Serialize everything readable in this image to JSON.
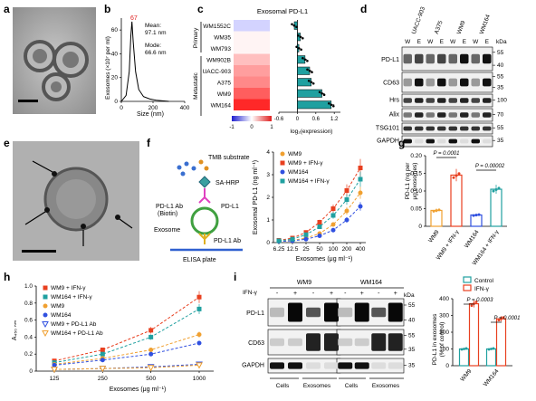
{
  "panels": {
    "a": {
      "letter": "a"
    },
    "b": {
      "letter": "b",
      "peak_label": "67",
      "mean_label": "Mean:",
      "mean_value": "97.1 nm",
      "mode_label": "Mode:",
      "mode_value": "66.6 nm",
      "xlabel": "Size (nm)",
      "ylabel": "Exosomes (×10⁷ per ml)",
      "chart_data": {
        "type": "line",
        "x": [
          0,
          30,
          50,
          60,
          67,
          75,
          90,
          110,
          140,
          180,
          220,
          300
        ],
        "y": [
          0,
          5,
          25,
          55,
          67,
          50,
          25,
          10,
          4,
          2,
          1,
          0
        ],
        "xticks": [
          "0",
          "200",
          "400"
        ],
        "yticks": [
          "0",
          "20",
          "40",
          "60"
        ],
        "xlim": [
          0,
          400
        ],
        "ylim": [
          0,
          70
        ]
      }
    },
    "c": {
      "letter": "c",
      "title": "Exosomal PD-L1",
      "group_primary": "Primary",
      "group_metastatic": "Metastatic",
      "cell_lines": [
        "WM1552C",
        "WM35",
        "WM793",
        "WM902B",
        "UACC-903",
        "A375",
        "WM9",
        "WM164"
      ],
      "colorbar_ticks": [
        "-1",
        "0",
        "1"
      ],
      "xlabel": "log₂(expression)",
      "chart_data": {
        "type": "bar",
        "categories": [
          "WM1552C",
          "WM35",
          "WM793",
          "WM902B",
          "UACC-903",
          "A375",
          "WM9",
          "WM164"
        ],
        "values": [
          -0.1,
          0.1,
          0.05,
          0.25,
          0.4,
          0.45,
          0.8,
          1.1
        ],
        "errors": [
          0.05,
          0.05,
          0.05,
          0.06,
          0.07,
          0.05,
          0.08,
          0.1
        ],
        "heat_values": [
          -0.2,
          0.05,
          0.05,
          0.3,
          0.45,
          0.55,
          0.75,
          1.0
        ],
        "xticks": [
          "-0.6",
          "0",
          "0.6",
          "1.2"
        ],
        "xlim": [
          -0.6,
          1.4
        ]
      }
    },
    "d": {
      "letter": "d",
      "lanes_header": [
        "UACC-903",
        "A375",
        "WM9",
        "WM164"
      ],
      "lane_sub": [
        "W",
        "E",
        "W",
        "E",
        "W",
        "E",
        "W",
        "E"
      ],
      "kda_label": "kDa",
      "rows": [
        {
          "name": "PD-L1",
          "kda": [
            "55",
            "40"
          ]
        },
        {
          "name": "CD63",
          "kda": [
            "55",
            "35"
          ]
        },
        {
          "name": "Hrs",
          "kda": [
            "100"
          ]
        },
        {
          "name": "Alix",
          "kda": [
            "70"
          ]
        },
        {
          "name": "TSG101",
          "kda": [
            "55"
          ]
        },
        {
          "name": "GAPDH",
          "kda": [
            "35"
          ]
        }
      ]
    },
    "e": {
      "letter": "e"
    },
    "f": {
      "letter": "f",
      "diagram": {
        "tmb": "TMB substrate",
        "sahrp": "SA-HRP",
        "pdl1ab_biotin_1": "PD-L1 Ab",
        "pdl1ab_biotin_2": "(Biotin)",
        "pdl1": "PD-L1",
        "exosome": "Exosome",
        "pdl1ab": "PD-L1 Ab",
        "plate": "ELISA plate"
      },
      "ylabel": "Exosomal PD-L1 (ng ml⁻¹)",
      "xlabel": "Exosomes (μg ml⁻¹)",
      "chart_data": {
        "type": "line",
        "categories": [
          "6.25",
          "12.5",
          "25",
          "50",
          "100",
          "200",
          "400"
        ],
        "yticks": [
          "0",
          "1",
          "2",
          "3",
          "4"
        ],
        "ylim": [
          0,
          4
        ],
        "series": [
          {
            "name": "WM9",
            "values": [
              0.05,
              0.1,
              0.2,
              0.4,
              0.8,
              1.4,
              2.2
            ],
            "color": "#f0a030",
            "marker": "circle"
          },
          {
            "name": "WM9 + IFN-γ",
            "values": [
              0.1,
              0.2,
              0.45,
              0.9,
              1.5,
              2.3,
              3.3
            ],
            "color": "#e84020",
            "marker": "square"
          },
          {
            "name": "WM164",
            "values": [
              0.05,
              0.08,
              0.15,
              0.3,
              0.55,
              1.0,
              1.6
            ],
            "color": "#3050e0",
            "marker": "circle"
          },
          {
            "name": "WM164 + IFN-γ",
            "values": [
              0.08,
              0.15,
              0.35,
              0.7,
              1.2,
              1.9,
              2.8
            ],
            "color": "#20a0a0",
            "marker": "square"
          }
        ]
      }
    },
    "g": {
      "letter": "g",
      "ylabel1": "PD-L1 (ng per",
      "ylabel2": "μg exosomes)",
      "p1": "P = 0.0001",
      "p2": "P = 0.00002",
      "chart_data": {
        "type": "bar",
        "categories": [
          "WM9",
          "WM9 + IFN-γ",
          "WM164",
          "WM164 + IFN-γ"
        ],
        "values": [
          0.045,
          0.145,
          0.032,
          0.105
        ],
        "colors": [
          "#f0a030",
          "#e84020",
          "#3050e0",
          "#20a0a0"
        ],
        "yticks": [
          "0",
          "0.05",
          "0.10",
          "0.15",
          "0.20"
        ],
        "ylim": [
          0,
          0.2
        ]
      }
    },
    "h": {
      "letter": "h",
      "ylabel": "A₄₅₀ ₙₘ",
      "xlabel": "Exosomes (μg ml⁻¹)",
      "chart_data": {
        "type": "line",
        "categories": [
          "125",
          "250",
          "500",
          "1000"
        ],
        "yticks": [
          "0",
          "0.2",
          "0.4",
          "0.6",
          "0.8",
          "1.0"
        ],
        "ylim": [
          0,
          1.0
        ],
        "series": [
          {
            "name": "WM9 + IFN-γ",
            "values": [
              0.12,
              0.25,
              0.48,
              0.87
            ],
            "color": "#e84020",
            "marker": "square"
          },
          {
            "name": "WM164 + IFN-γ",
            "values": [
              0.1,
              0.2,
              0.4,
              0.73
            ],
            "color": "#20a0a0",
            "marker": "square"
          },
          {
            "name": "WM9",
            "values": [
              0.08,
              0.15,
              0.25,
              0.43
            ],
            "color": "#f0a030",
            "marker": "circle"
          },
          {
            "name": "WM164",
            "values": [
              0.07,
              0.13,
              0.2,
              0.33
            ],
            "color": "#3050e0",
            "marker": "circle"
          },
          {
            "name": "WM9 + PD-L1 Ab",
            "values": [
              0.02,
              0.03,
              0.05,
              0.08
            ],
            "color": "#3050e0",
            "marker": "triangle-open"
          },
          {
            "name": "WM164 + PD-L1 Ab",
            "values": [
              0.02,
              0.03,
              0.04,
              0.07
            ],
            "color": "#f0a030",
            "marker": "triangle-open"
          }
        ]
      }
    },
    "i": {
      "letter": "i",
      "group1": "WM9",
      "group2": "WM164",
      "ifn_label": "IFN-γ",
      "signs": [
        "-",
        "+",
        "-",
        "+",
        "-",
        "+",
        "-",
        "+"
      ],
      "kda_label": "kDa",
      "rows": [
        {
          "name": "PD-L1",
          "kda": [
            "55",
            "40"
          ]
        },
        {
          "name": "CD63",
          "kda": [
            "55",
            "35"
          ]
        },
        {
          "name": "GAPDH",
          "kda": [
            "35"
          ]
        }
      ],
      "bottom": [
        "Cells",
        "Exosomes",
        "Cells",
        "Exosomes"
      ],
      "legend": [
        "Control",
        "IFN-γ"
      ],
      "ylabel1": "PD-L1 in exosomes",
      "ylabel2": "(% of control)",
      "p1": "P = 0.0003",
      "p2": "P = 0.0001",
      "chart_data": {
        "type": "bar",
        "categories": [
          "WM9",
          "WM164"
        ],
        "series": [
          {
            "name": "Control",
            "values": [
              100,
              100
            ],
            "color": "#20a0a0"
          },
          {
            "name": "IFN-γ",
            "values": [
              370,
              280
            ],
            "color": "#e84020"
          }
        ],
        "yticks": [
          "0",
          "100",
          "200",
          "300",
          "400"
        ],
        "ylim": [
          0,
          400
        ]
      }
    }
  }
}
